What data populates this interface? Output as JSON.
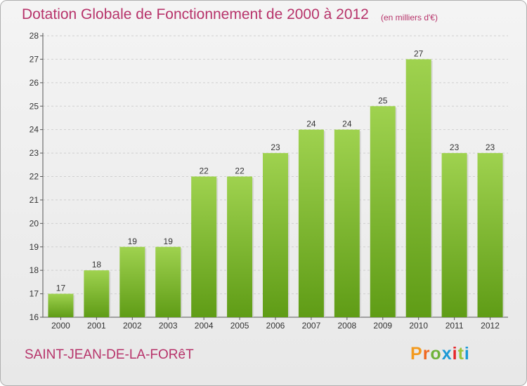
{
  "title": "Dotation Globale de Fonctionnement de 2000 à 2012",
  "unit_note": "(en milliers d'€)",
  "commune": "SAINT-JEAN-DE-LA-FORêT",
  "logo_letters": [
    "P",
    "r",
    "o",
    "x",
    "i",
    "t",
    "i"
  ],
  "colors": {
    "title": "#b7336a",
    "bar_top": "#9fd24f",
    "bar_bottom": "#5f9c16",
    "logo": [
      "#f39a1e",
      "#f0671f",
      "#6fb33b",
      "#1d9ad6",
      "#e5262a",
      "#9bc53d",
      "#1d9ad6"
    ]
  },
  "chart_data": {
    "type": "bar",
    "categories": [
      "2000",
      "2001",
      "2002",
      "2003",
      "2004",
      "2005",
      "2006",
      "2007",
      "2008",
      "2009",
      "2010",
      "2011",
      "2012"
    ],
    "values": [
      17,
      18,
      19,
      19,
      22,
      22,
      23,
      24,
      24,
      25,
      27,
      23,
      23
    ],
    "ylim": [
      16,
      28
    ],
    "yticks": [
      16,
      17,
      18,
      19,
      20,
      21,
      22,
      23,
      24,
      25,
      26,
      27,
      28
    ],
    "grid": true,
    "data_labels": true
  }
}
